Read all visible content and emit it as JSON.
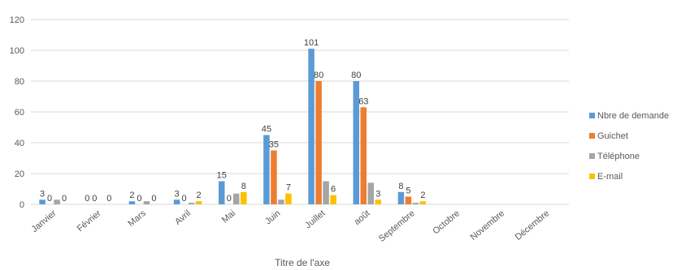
{
  "chart_data": {
    "type": "bar",
    "title": "",
    "xlabel": "Titre de l'axe",
    "ylabel": "",
    "ylim": [
      0,
      120
    ],
    "yticks": [
      0,
      20,
      40,
      60,
      80,
      100,
      120
    ],
    "grid": true,
    "legend_position": "right",
    "categories": [
      "Janvier",
      "Février",
      "Mars",
      "Avril",
      "Mai",
      "Juin",
      "Juillet",
      "août",
      "Septembre",
      "Octobre",
      "Novembre",
      "Décembre"
    ],
    "series": [
      {
        "name": "Nbre de demande",
        "color": "#5b9bd5",
        "values": [
          3,
          0,
          2,
          3,
          15,
          45,
          101,
          80,
          8,
          0,
          0,
          0
        ],
        "labels": [
          "3",
          "0",
          "2",
          "3",
          "15",
          "45",
          "101",
          "80",
          "8",
          null,
          null,
          null
        ]
      },
      {
        "name": "Guichet",
        "color": "#ed7d31",
        "values": [
          0,
          0,
          0,
          0,
          0,
          35,
          80,
          63,
          5,
          0,
          0,
          0
        ],
        "labels": [
          "0",
          "0",
          "0",
          "0",
          "0",
          "35",
          "80",
          "63",
          "5",
          null,
          null,
          null
        ]
      },
      {
        "name": "Téléphone",
        "color": "#a5a5a5",
        "values": [
          3,
          0,
          2,
          1,
          7,
          3,
          15,
          14,
          1,
          0,
          0,
          0
        ],
        "labels": [
          null,
          null,
          null,
          null,
          null,
          null,
          null,
          null,
          null,
          null,
          null,
          null
        ]
      },
      {
        "name": "E-mail",
        "color": "#ffc000",
        "values": [
          0,
          0,
          0,
          2,
          8,
          7,
          6,
          3,
          2,
          0,
          0,
          0
        ],
        "labels": [
          "0",
          "0",
          "0",
          "2",
          "8",
          "7",
          "6",
          "3",
          "2",
          null,
          null,
          null
        ]
      }
    ]
  }
}
